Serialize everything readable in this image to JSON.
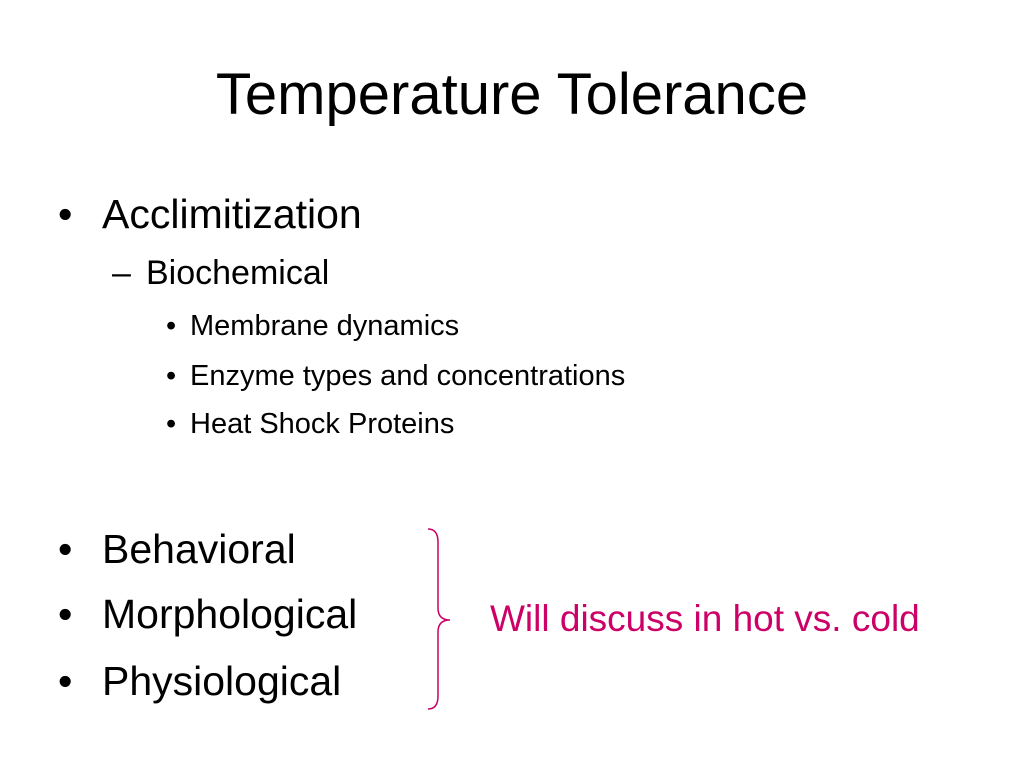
{
  "slide": {
    "title": "Temperature Tolerance",
    "bullets": {
      "acclimitization": "Acclimitization",
      "biochemical": "Biochemical",
      "biochemical_items": [
        "Membrane dynamics",
        "Enzyme types and concentrations",
        "Heat Shock Proteins"
      ],
      "other": [
        "Behavioral",
        "Morphological",
        "Physiological"
      ]
    },
    "markers": {
      "level1": "•",
      "level2": "–",
      "level3": "•"
    },
    "note": "Will discuss in hot vs. cold",
    "colors": {
      "note": "#cc0066",
      "text": "#000000",
      "background": "#ffffff"
    },
    "brace_icon": "right-curly-brace"
  }
}
